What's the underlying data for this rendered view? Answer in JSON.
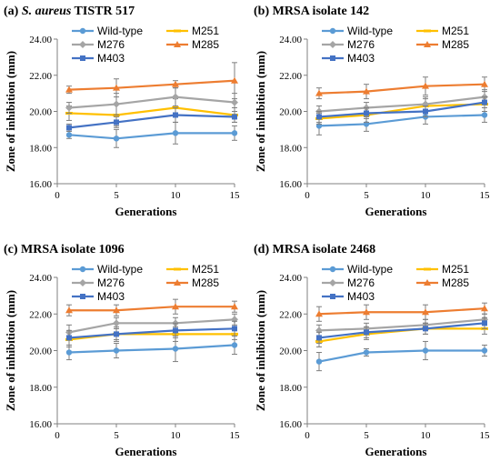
{
  "colors": {
    "Wild-type": "#5b9bd5",
    "M251": "#ffc000",
    "M276": "#a5a5a5",
    "M285": "#ed7d31",
    "M403": "#4472c4",
    "axis": "#808080"
  },
  "chart_data": [
    {
      "type": "line",
      "title": "(a) S. aureus TISTR 517",
      "title_prefix": "(a) ",
      "title_italic": "S. aureus",
      "title_suffix": " TISTR 517",
      "xlabel": "Generations",
      "ylabel": "Zone of inhibition (mm)",
      "x": [
        1,
        5,
        10,
        15
      ],
      "xticks": [
        "0",
        "5",
        "10",
        "15"
      ],
      "xlim": [
        0,
        15
      ],
      "ylim": [
        16,
        24
      ],
      "yticks": [
        "16.00",
        "18.00",
        "20.00",
        "22.00",
        "24.00"
      ],
      "grid": false,
      "legend": "top",
      "series": [
        {
          "name": "Wild-type",
          "values": [
            18.7,
            18.5,
            18.8,
            18.8
          ],
          "err": [
            0.2,
            0.5,
            0.6,
            0.4
          ]
        },
        {
          "name": "M251",
          "values": [
            19.9,
            19.8,
            20.2,
            19.8
          ],
          "err": [
            0.4,
            0.6,
            0.5,
            0.4
          ]
        },
        {
          "name": "M276",
          "values": [
            20.2,
            20.4,
            20.8,
            20.5
          ],
          "err": [
            0.3,
            0.6,
            0.5,
            0.5
          ]
        },
        {
          "name": "M285",
          "values": [
            21.2,
            21.3,
            21.5,
            21.7
          ],
          "err": [
            0.2,
            0.5,
            0.2,
            1.0
          ]
        },
        {
          "name": "M403",
          "values": [
            19.1,
            19.4,
            19.8,
            19.7
          ],
          "err": [
            0.2,
            0.3,
            0.4,
            0.3
          ]
        }
      ]
    },
    {
      "type": "line",
      "title": "(b) MRSA isolate 142",
      "title_prefix": "(b) MRSA isolate 142",
      "title_italic": "",
      "title_suffix": "",
      "xlabel": "Generations",
      "ylabel": "Zone of inhibition (mm)",
      "x": [
        1,
        5,
        10,
        15
      ],
      "xticks": [
        "0",
        "5",
        "10",
        "15"
      ],
      "xlim": [
        0,
        15
      ],
      "ylim": [
        16,
        24
      ],
      "yticks": [
        "16.00",
        "18.00",
        "20.00",
        "22.00",
        "24.00"
      ],
      "grid": false,
      "legend": "top",
      "series": [
        {
          "name": "Wild-type",
          "values": [
            19.2,
            19.3,
            19.7,
            19.8
          ],
          "err": [
            0.5,
            0.4,
            0.4,
            0.4
          ]
        },
        {
          "name": "M251",
          "values": [
            19.6,
            19.8,
            20.3,
            20.4
          ],
          "err": [
            0.3,
            0.4,
            0.4,
            0.4
          ]
        },
        {
          "name": "M276",
          "values": [
            20.0,
            20.2,
            20.4,
            20.8
          ],
          "err": [
            0.3,
            0.3,
            0.4,
            0.4
          ]
        },
        {
          "name": "M285",
          "values": [
            21.0,
            21.1,
            21.4,
            21.5
          ],
          "err": [
            0.3,
            0.4,
            0.5,
            0.4
          ]
        },
        {
          "name": "M403",
          "values": [
            19.7,
            19.9,
            20.0,
            20.5
          ],
          "err": [
            0.3,
            0.3,
            0.3,
            0.3
          ]
        }
      ]
    },
    {
      "type": "line",
      "title": "(c) MRSA isolate 1096",
      "title_prefix": "(c) MRSA isolate 1096",
      "title_italic": "",
      "title_suffix": "",
      "xlabel": "Generations",
      "ylabel": "Zone of inhibition (mm)",
      "x": [
        1,
        5,
        10,
        15
      ],
      "xticks": [
        "0",
        "5",
        "10",
        "15"
      ],
      "xlim": [
        0,
        15
      ],
      "ylim": [
        16,
        24
      ],
      "yticks": [
        "16.00",
        "18.00",
        "20.00",
        "22.00",
        "24.00"
      ],
      "grid": false,
      "legend": "top",
      "series": [
        {
          "name": "Wild-type",
          "values": [
            19.9,
            20.0,
            20.1,
            20.3
          ],
          "err": [
            0.4,
            0.4,
            0.7,
            0.5
          ]
        },
        {
          "name": "M251",
          "values": [
            20.6,
            20.9,
            20.9,
            20.9
          ],
          "err": [
            0.4,
            0.3,
            0.4,
            0.3
          ]
        },
        {
          "name": "M276",
          "values": [
            21.0,
            21.5,
            21.5,
            21.7
          ],
          "err": [
            0.4,
            0.3,
            0.3,
            0.3
          ]
        },
        {
          "name": "M285",
          "values": [
            22.2,
            22.2,
            22.4,
            22.4
          ],
          "err": [
            0.3,
            0.3,
            0.4,
            0.3
          ]
        },
        {
          "name": "M403",
          "values": [
            20.7,
            20.9,
            21.1,
            21.2
          ],
          "err": [
            0.4,
            0.4,
            0.4,
            0.4
          ]
        }
      ]
    },
    {
      "type": "line",
      "title": "(d) MRSA isolate 2468",
      "title_prefix": "(d) MRSA isolate 2468",
      "title_italic": "",
      "title_suffix": "",
      "xlabel": "Generations",
      "ylabel": "Zone of inhibition (mm)",
      "x": [
        1,
        5,
        10,
        15
      ],
      "xticks": [
        "0",
        "5",
        "10",
        "15"
      ],
      "xlim": [
        0,
        15
      ],
      "ylim": [
        16,
        24
      ],
      "yticks": [
        "16.00",
        "18.00",
        "20.00",
        "22.00",
        "24.00"
      ],
      "grid": false,
      "legend": "top",
      "series": [
        {
          "name": "Wild-type",
          "values": [
            19.4,
            19.9,
            20.0,
            20.0
          ],
          "err": [
            0.5,
            0.2,
            0.5,
            0.3
          ]
        },
        {
          "name": "M251",
          "values": [
            20.5,
            20.9,
            21.2,
            21.2
          ],
          "err": [
            0.3,
            0.3,
            0.3,
            0.3
          ]
        },
        {
          "name": "M276",
          "values": [
            21.1,
            21.2,
            21.4,
            21.7
          ],
          "err": [
            0.3,
            0.3,
            0.3,
            0.3
          ]
        },
        {
          "name": "M285",
          "values": [
            22.0,
            22.1,
            22.1,
            22.3
          ],
          "err": [
            0.4,
            0.4,
            0.4,
            0.3
          ]
        },
        {
          "name": "M403",
          "values": [
            20.7,
            21.0,
            21.2,
            21.5
          ],
          "err": [
            0.3,
            0.3,
            0.3,
            0.3
          ]
        }
      ]
    }
  ]
}
